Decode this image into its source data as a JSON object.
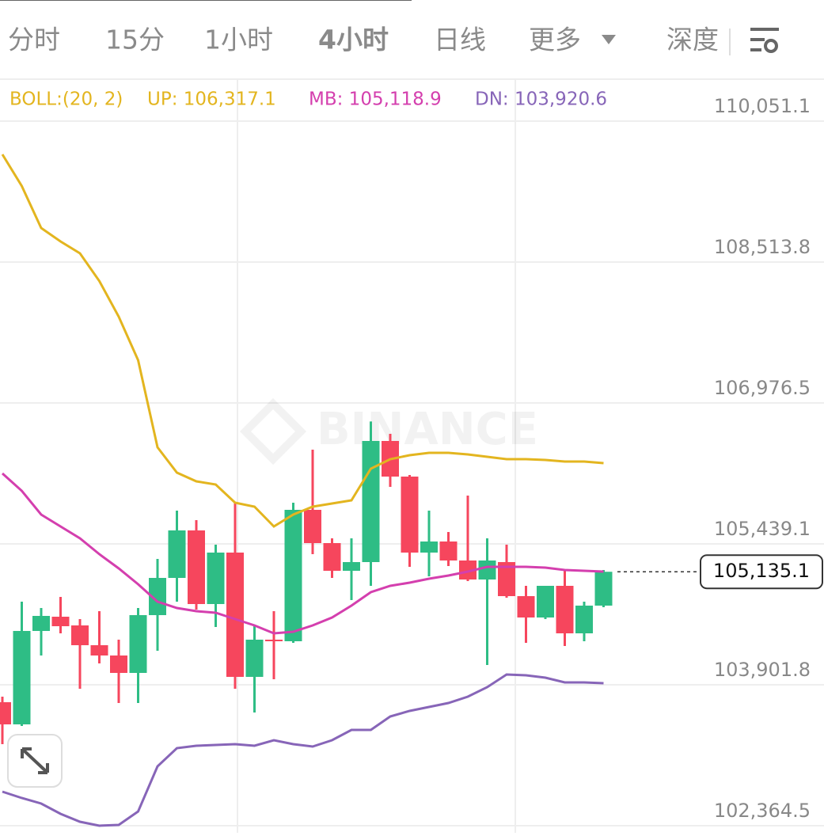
{
  "tabs": [
    "分时",
    "15分",
    "1小时",
    "4小时",
    "日线",
    "更多",
    "深度"
  ],
  "active_tab": 3,
  "chart_data": {
    "type": "candlestick",
    "indicator": "BOLL:(20, 2)",
    "watermark": "BINANCE",
    "up_color": "#2ebd85",
    "down_color": "#f6465d",
    "ylim": [
      102287.3,
      110508.8
    ],
    "yticks": [
      {
        "value": 110051.1,
        "label": "110,051.1"
      },
      {
        "value": 108513.8,
        "label": "108,513.8"
      },
      {
        "value": 106976.5,
        "label": "106,976.5"
      },
      {
        "value": 105439.1,
        "label": "105,439.1"
      },
      {
        "value": 103901.8,
        "label": "103,901.8"
      },
      {
        "value": 102364.5,
        "label": "102,364.5"
      }
    ],
    "grid": true,
    "high": [
      103772.7,
      104809.0,
      104740.0,
      104860.9,
      104619.0,
      104705.4,
      104394.5,
      104740.0,
      105275.4,
      105802.2,
      105698.5,
      105430.8,
      105888.5,
      104550.0,
      104705.4,
      105888.5,
      106467.2,
      105499.9,
      105499.9,
      106775.0,
      106639.9,
      106190.8,
      105802.2,
      105569.0,
      105966.3,
      105499.9,
      105430.8,
      104981.8,
      104981.8,
      105154.5,
      104809.0,
      105154.5
    ],
    "low": [
      103254.6,
      103453.2,
      104221.8,
      104463.6,
      103859.1,
      104135.4,
      103703.6,
      103703.6,
      104273.6,
      104809.0,
      104722.7,
      104532.7,
      103859.1,
      103600.0,
      103962.7,
      104360.0,
      105327.2,
      105068.1,
      104826.3,
      104981.8,
      106061.3,
      105189.0,
      105085.4,
      105197.7,
      105033.6,
      104118.2,
      104852.2,
      104360.0,
      104619.0,
      104325.4,
      104377.2,
      104748.6
    ],
    "last": {
      "value": 105135.1,
      "label": "105,135.1"
    },
    "open": [
      103712.3,
      103470.5,
      104489.5,
      104645.0,
      104550.0,
      104334.1,
      104221.8,
      104031.8,
      104662.2,
      105068.1,
      105586.3,
      104783.1,
      105344.5,
      103988.6,
      104394.5,
      104377.2,
      105810.8,
      105448.1,
      105145.8,
      105240.8,
      106562.1,
      106173.5,
      105344.5,
      105465.4,
      105258.1,
      105050.8,
      105240.8,
      104869.5,
      104636.3,
      104981.8,
      104463.6,
      104765.9
    ],
    "close": [
      103470.5,
      104489.5,
      104653.6,
      104541.3,
      104334.1,
      104221.8,
      104031.8,
      104662.2,
      105068.1,
      105586.3,
      104783.1,
      105344.5,
      103988.6,
      104394.5,
      104377.2,
      105810.8,
      105448.1,
      105145.8,
      105240.8,
      106562.1,
      106173.5,
      105344.5,
      105465.4,
      105258.1,
      105050.8,
      105258.1,
      104869.5,
      104636.3,
      104981.8,
      104463.6,
      104765.9,
      105135.1
    ],
    "series": [
      {
        "name": "UP: 106,317.1",
        "color": "#e3b51f",
        "values": [
          109688.4,
          109342.9,
          108885.2,
          108738.4,
          108608.9,
          108306.6,
          107918.0,
          107443.0,
          106493.1,
          106216.7,
          106121.7,
          106087.2,
          105888.5,
          105845.4,
          105629.5,
          105759.0,
          105845.4,
          105879.9,
          105914.4,
          106259.9,
          106363.5,
          106406.7,
          106432.6,
          106432.6,
          106415.3,
          106389.4,
          106363.5,
          106363.5,
          106354.9,
          106337.6,
          106337.6,
          106320.3
        ]
      },
      {
        "name": "MB: 105,118.9",
        "color": "#d43fae",
        "values": [
          106208.1,
          106018.1,
          105759.0,
          105629.5,
          105499.9,
          105327.2,
          105171.8,
          104999.0,
          104809.0,
          104740.0,
          104705.4,
          104688.1,
          104619.0,
          104550.0,
          104463.6,
          104480.9,
          104550.0,
          104636.3,
          104765.9,
          104912.7,
          104981.8,
          105016.3,
          105059.5,
          105094.0,
          105137.2,
          105189.0,
          105189.0,
          105189.0,
          105180.4,
          105154.5,
          105145.8,
          105137.2
        ]
      },
      {
        "name": "DN: 103,920.6",
        "color": "#8765b8",
        "values": [
          102736.4,
          102667.3,
          102606.9,
          102494.6,
          102408.2,
          102365.1,
          102373.7,
          102520.5,
          103012.8,
          103211.4,
          103237.3,
          103245.9,
          103254.6,
          103237.3,
          103297.7,
          103254.6,
          103228.7,
          103297.7,
          103410.0,
          103410.0,
          103556.8,
          103617.3,
          103660.5,
          103703.6,
          103772.7,
          103876.4,
          104014.5,
          104005.9,
          103980.0,
          103928.2,
          103928.2,
          103919.5
        ]
      }
    ]
  }
}
